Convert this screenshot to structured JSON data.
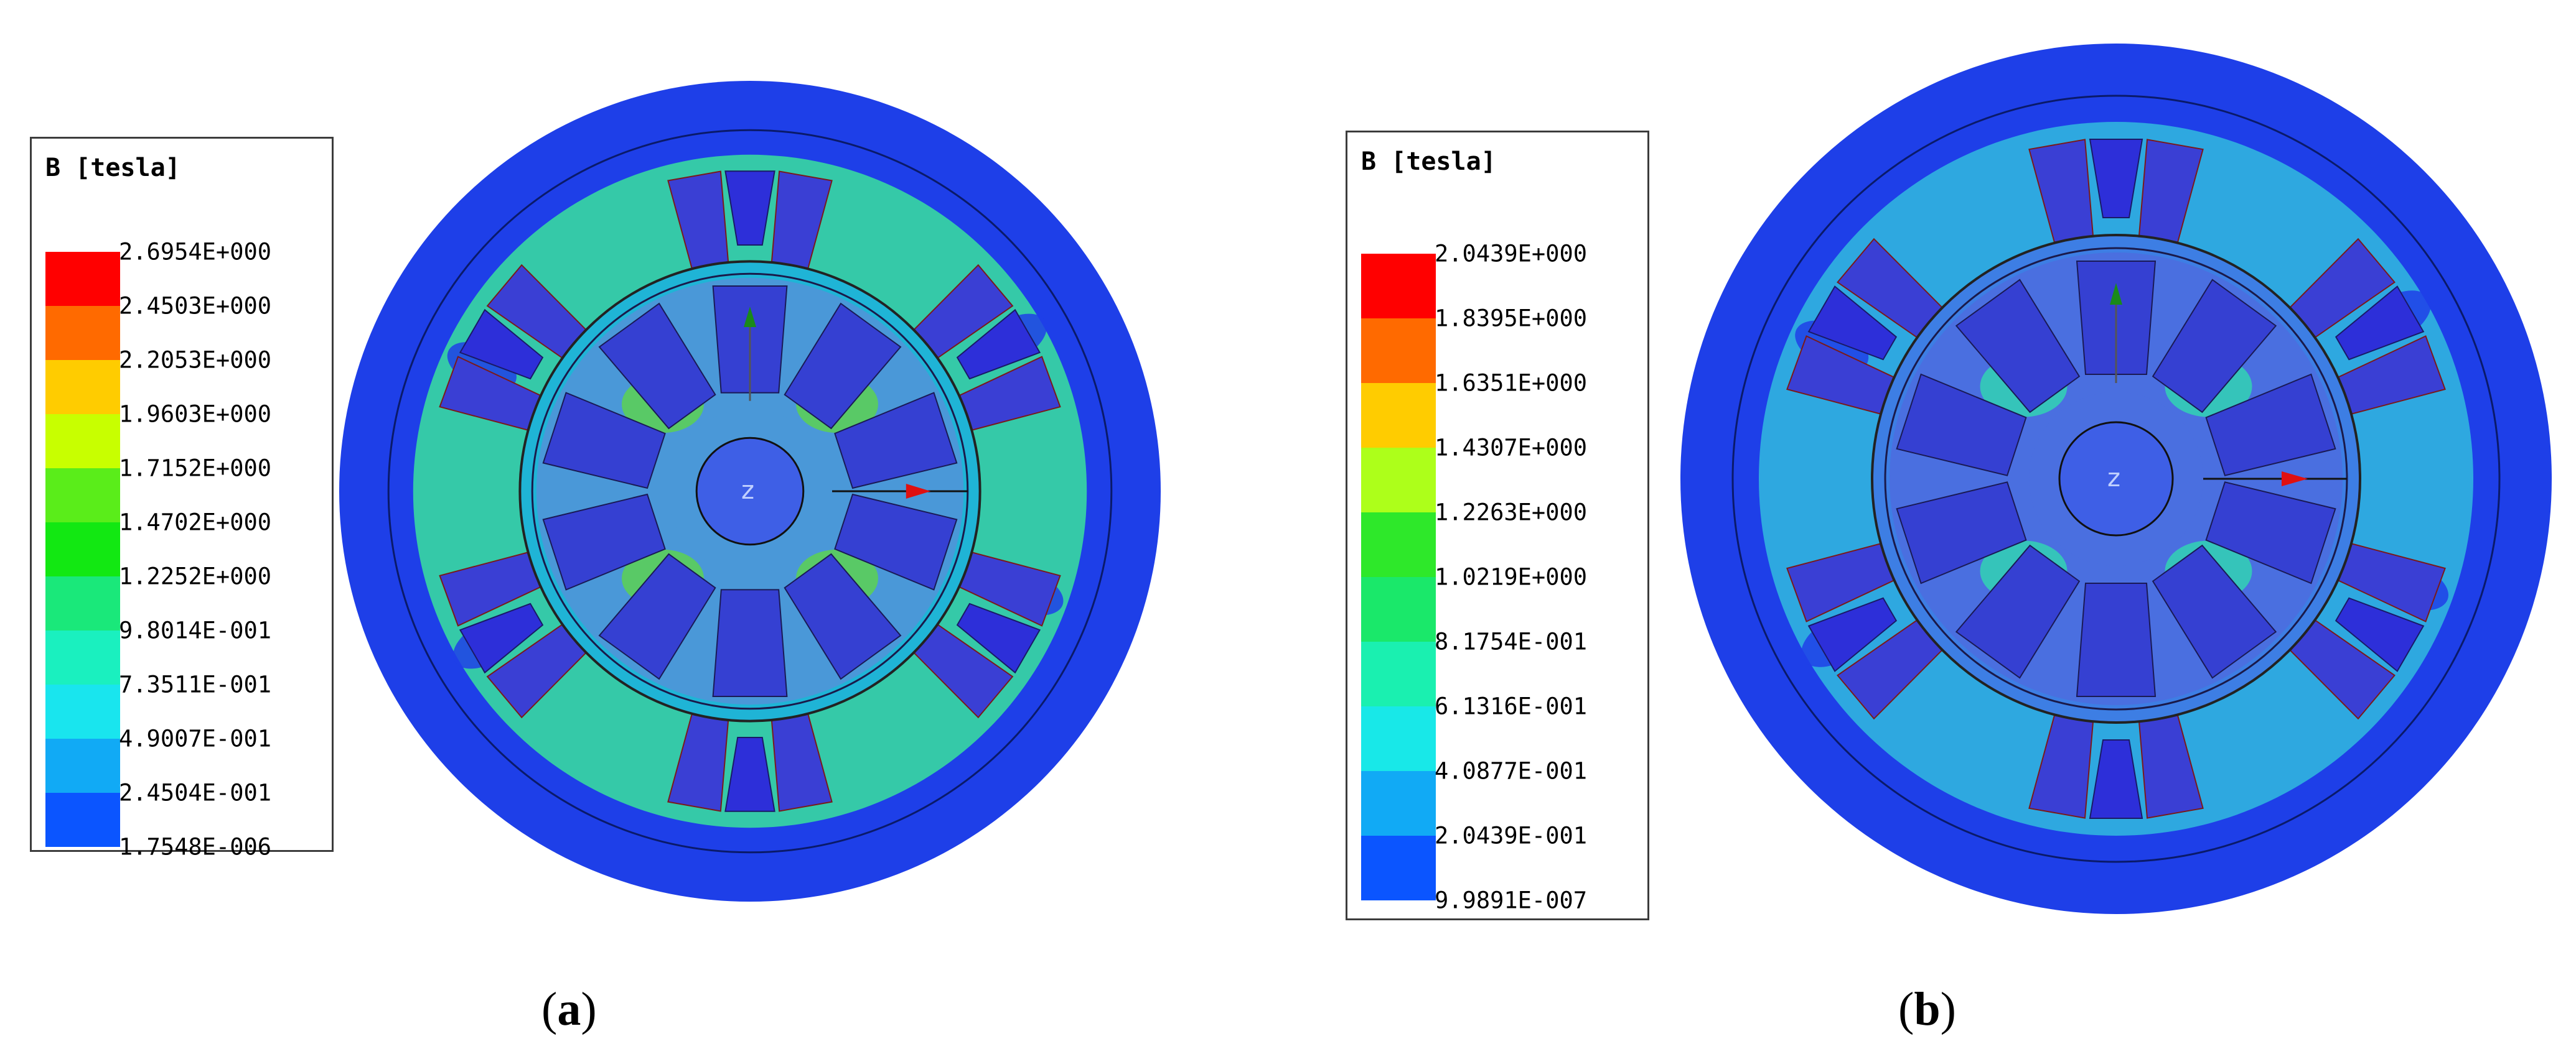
{
  "panels": [
    {
      "id": "a",
      "caption": "a",
      "legend": {
        "title": "B [tesla]",
        "values": [
          "2.6954E+000",
          "2.4503E+000",
          "2.2053E+000",
          "1.9603E+000",
          "1.7152E+000",
          "1.4702E+000",
          "1.2252E+000",
          "9.8014E-001",
          "7.3511E-001",
          "4.9007E-001",
          "2.4504E-001",
          "1.7548E-006"
        ],
        "colors": [
          "#ff0000",
          "#ff6a00",
          "#ffcc00",
          "#c8ff00",
          "#5aed1a",
          "#12e812",
          "#1ae87a",
          "#1af0bf",
          "#19e5ee",
          "#11aaf5",
          "#0b55ff",
          "#0000ff"
        ]
      },
      "field_colors": {
        "outer_yoke": "#1e3fe8",
        "inner_region": "#35c9a8",
        "stator_core": "#1fb4d6",
        "rotor_core": "#4a98d8",
        "hot": "#5cd64a"
      }
    },
    {
      "id": "b",
      "caption": "b",
      "legend": {
        "title": "B [tesla]",
        "values": [
          "2.0439E+000",
          "1.8395E+000",
          "1.6351E+000",
          "1.4307E+000",
          "1.2263E+000",
          "1.0219E+000",
          "8.1754E-001",
          "6.1316E-001",
          "4.0877E-001",
          "2.0439E-001",
          "9.9891E-007"
        ],
        "colors": [
          "#ff0000",
          "#ff6a00",
          "#ffcc00",
          "#adff1a",
          "#2ee82a",
          "#1ae86a",
          "#1af0b0",
          "#18e8e8",
          "#11aaf5",
          "#0b55ff",
          "#0000ff"
        ]
      },
      "field_colors": {
        "outer_yoke": "#1e3fe8",
        "inner_region": "#2ea8e0",
        "stator_core": "#3d7ee4",
        "rotor_core": "#4a6fe0",
        "hot": "#2fd9b0"
      }
    }
  ],
  "icons": [
    "up-arrow-icon",
    "right-arrow-icon"
  ]
}
